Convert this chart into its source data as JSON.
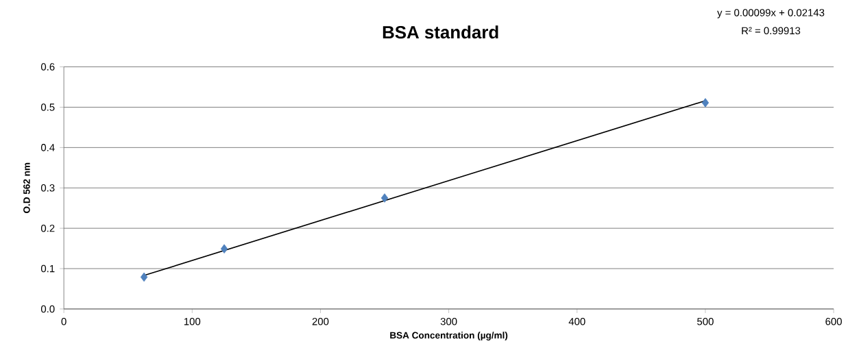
{
  "chart_data": {
    "type": "scatter",
    "title": "BSA standard",
    "xlabel": "BSA Concentration (µg/ml)",
    "ylabel": "O.D 562 nm",
    "annotations": [
      "y = 0.00099x + 0.02143",
      "R² = 0.99913"
    ],
    "series": [
      {
        "color": "#4f81bd",
        "marker": "diamond",
        "x": [
          62.5,
          125,
          250,
          500
        ],
        "values": [
          0.079,
          0.149,
          0.275,
          0.511
        ]
      },
      {
        "type": "line",
        "color": "#000000",
        "marker": "none",
        "line_style": "solid",
        "x": [
          62.5,
          500
        ],
        "values": [
          0.083,
          0.516
        ]
      }
    ],
    "xlim": [
      0,
      600
    ],
    "xticks": [
      0,
      100,
      200,
      300,
      400,
      500,
      600
    ],
    "ylim": [
      0,
      0.6
    ],
    "yticks": [
      {
        "value": 0,
        "label": "0.0"
      },
      0.1,
      0.2,
      0.3,
      0.4,
      0.5,
      0.6
    ],
    "grid": "y"
  }
}
